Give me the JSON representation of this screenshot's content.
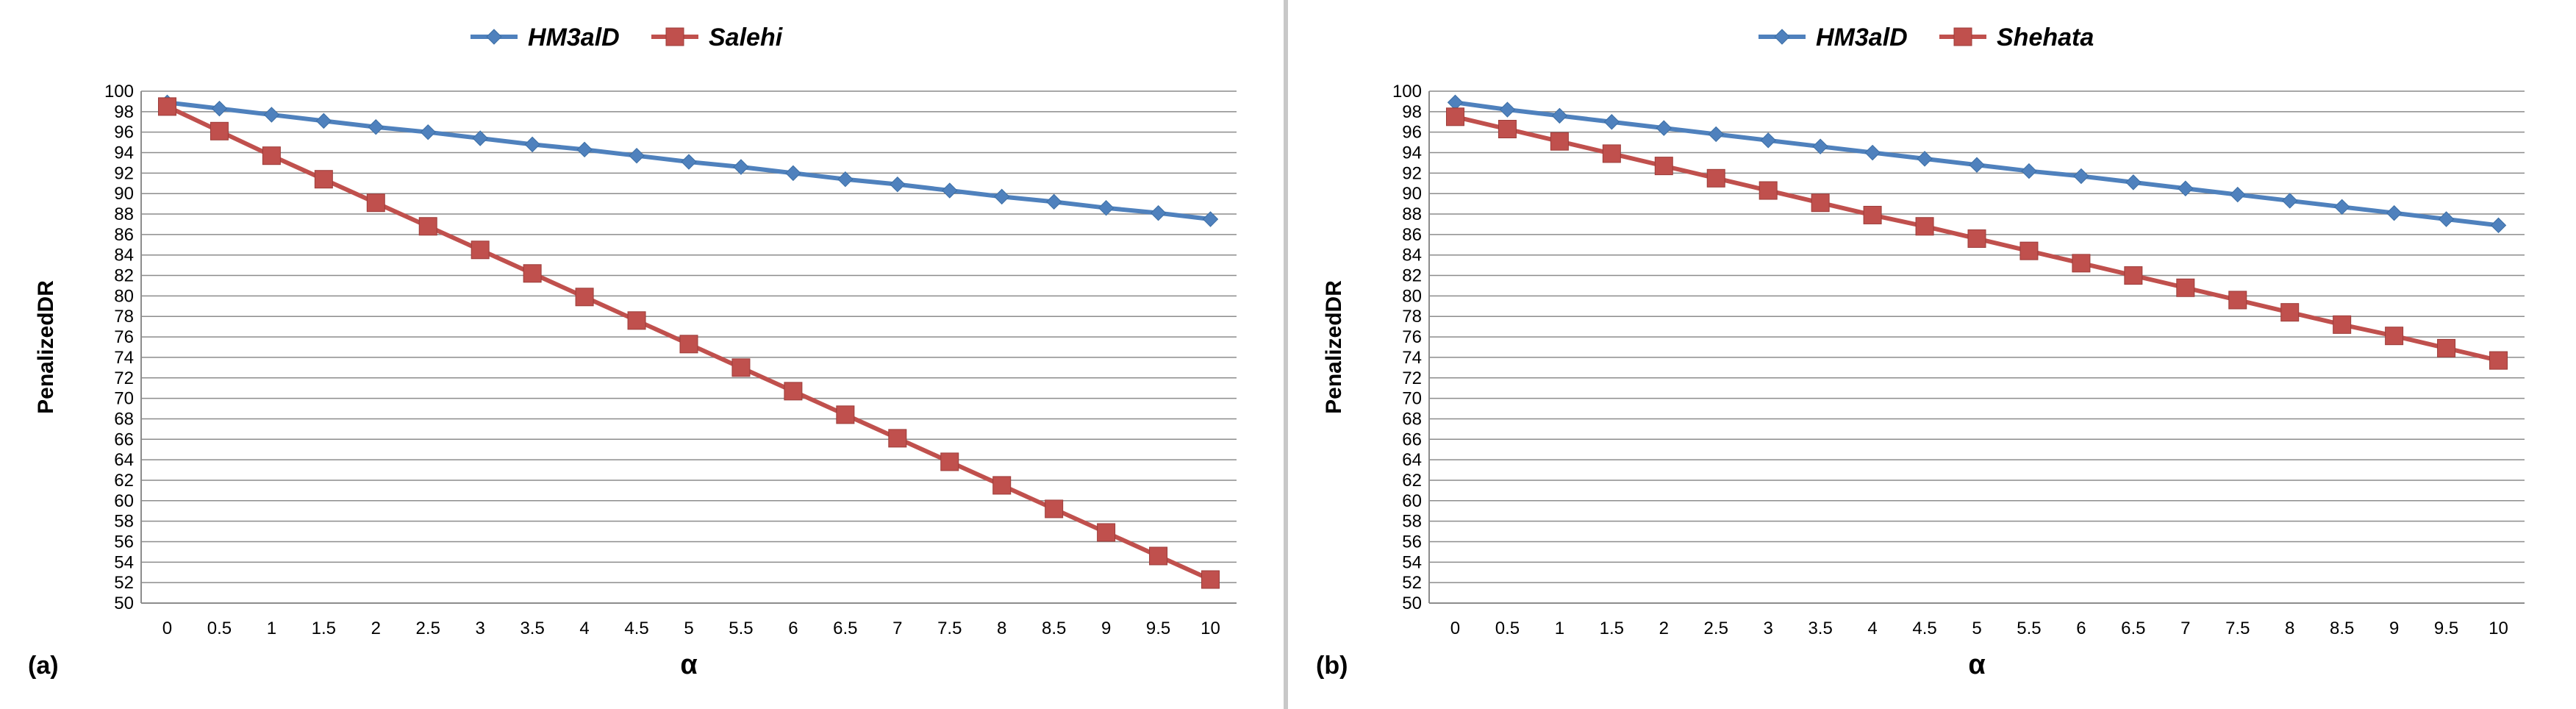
{
  "chart_data": [
    {
      "type": "line",
      "panel_label": "(a)",
      "xlabel": "α",
      "ylabel": "PenalizedDR",
      "x": [
        "0",
        "0.5",
        "1",
        "1.5",
        "2",
        "2.5",
        "3",
        "3.5",
        "4",
        "4.5",
        "5",
        "5.5",
        "6",
        "6.5",
        "7",
        "7.5",
        "8",
        "8.5",
        "9",
        "9.5",
        "10"
      ],
      "ylim": [
        50,
        100
      ],
      "y_step": 2,
      "grid": true,
      "legend_position": "top-center",
      "series": [
        {
          "name": "HM3alD",
          "color": "#4f81bd",
          "marker": "diamond",
          "values": [
            98.9,
            98.3,
            97.7,
            97.1,
            96.5,
            96.0,
            95.4,
            94.8,
            94.3,
            93.7,
            93.1,
            92.6,
            92.0,
            91.4,
            90.9,
            90.3,
            89.7,
            89.2,
            88.6,
            88.1,
            87.5
          ]
        },
        {
          "name": "Salehi",
          "color": "#c0504d",
          "marker": "square",
          "values": [
            98.5,
            96.1,
            93.7,
            91.4,
            89.1,
            86.8,
            84.5,
            82.2,
            79.9,
            77.6,
            75.3,
            73.0,
            70.7,
            68.4,
            66.1,
            63.8,
            61.5,
            59.2,
            56.9,
            54.6,
            52.3
          ]
        }
      ]
    },
    {
      "type": "line",
      "panel_label": "(b)",
      "xlabel": "α",
      "ylabel": "PenalizedDR",
      "x": [
        "0",
        "0.5",
        "1",
        "1.5",
        "2",
        "2.5",
        "3",
        "3.5",
        "4",
        "4.5",
        "5",
        "5.5",
        "6",
        "6.5",
        "7",
        "7.5",
        "8",
        "8.5",
        "9",
        "9.5",
        "10"
      ],
      "ylim": [
        50,
        100
      ],
      "y_step": 2,
      "grid": true,
      "legend_position": "top-center",
      "series": [
        {
          "name": "HM3alD",
          "color": "#4f81bd",
          "marker": "diamond",
          "values": [
            98.9,
            98.2,
            97.6,
            97.0,
            96.4,
            95.8,
            95.2,
            94.6,
            94.0,
            93.4,
            92.8,
            92.2,
            91.7,
            91.1,
            90.5,
            89.9,
            89.3,
            88.7,
            88.1,
            87.5,
            86.9
          ]
        },
        {
          "name": "Shehata",
          "color": "#c0504d",
          "marker": "square",
          "values": [
            97.5,
            96.3,
            95.1,
            93.9,
            92.7,
            91.5,
            90.3,
            89.1,
            87.9,
            86.8,
            85.6,
            84.4,
            83.2,
            82.0,
            80.8,
            79.6,
            78.4,
            77.2,
            76.1,
            74.9,
            73.7
          ]
        }
      ]
    }
  ]
}
